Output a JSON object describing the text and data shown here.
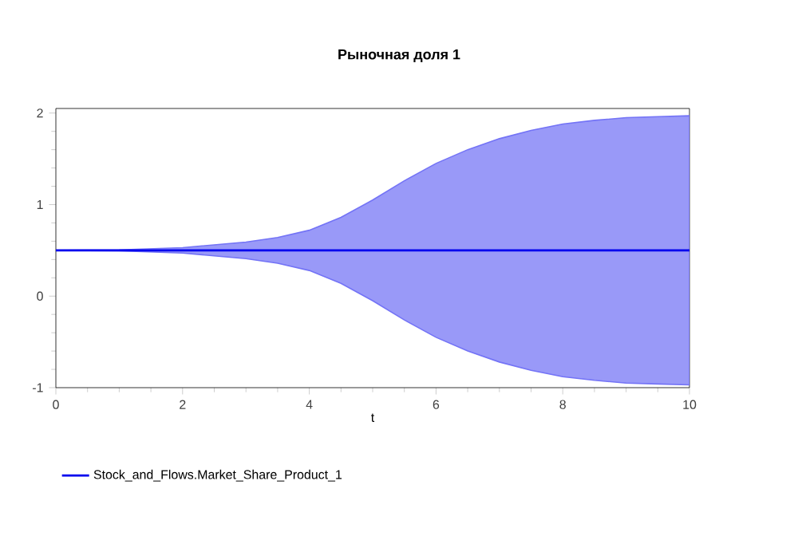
{
  "chart_data": {
    "type": "line",
    "title": "Рыночная доля 1",
    "xlabel": "t",
    "x": [
      0,
      1,
      2,
      3,
      3.5,
      4,
      4.5,
      5,
      5.5,
      6,
      6.5,
      7,
      7.5,
      8,
      8.5,
      9,
      9.5,
      10
    ],
    "series": [
      {
        "name": "Stock_and_Flows.Market_Share_Product_1",
        "color": "#0000ee",
        "values": [
          0.5,
          0.5,
          0.5,
          0.5,
          0.5,
          0.5,
          0.5,
          0.5,
          0.5,
          0.5,
          0.5,
          0.5,
          0.5,
          0.5,
          0.5,
          0.5,
          0.5,
          0.5
        ],
        "lower": [
          0.5,
          0.495,
          0.47,
          0.41,
          0.36,
          0.28,
          0.14,
          -0.05,
          -0.26,
          -0.45,
          -0.6,
          -0.72,
          -0.81,
          -0.88,
          -0.92,
          -0.95,
          -0.96,
          -0.97
        ],
        "upper": [
          0.5,
          0.505,
          0.53,
          0.59,
          0.64,
          0.72,
          0.86,
          1.05,
          1.26,
          1.45,
          1.6,
          1.72,
          1.81,
          1.88,
          1.92,
          1.95,
          1.96,
          1.97
        ]
      }
    ],
    "xlim": [
      0,
      10
    ],
    "ylim": [
      -1,
      2.05
    ],
    "xticks": [
      0,
      2,
      4,
      6,
      8,
      10
    ],
    "yticks": [
      -1,
      0,
      1,
      2
    ],
    "grid": false,
    "legend": "bottom left"
  }
}
